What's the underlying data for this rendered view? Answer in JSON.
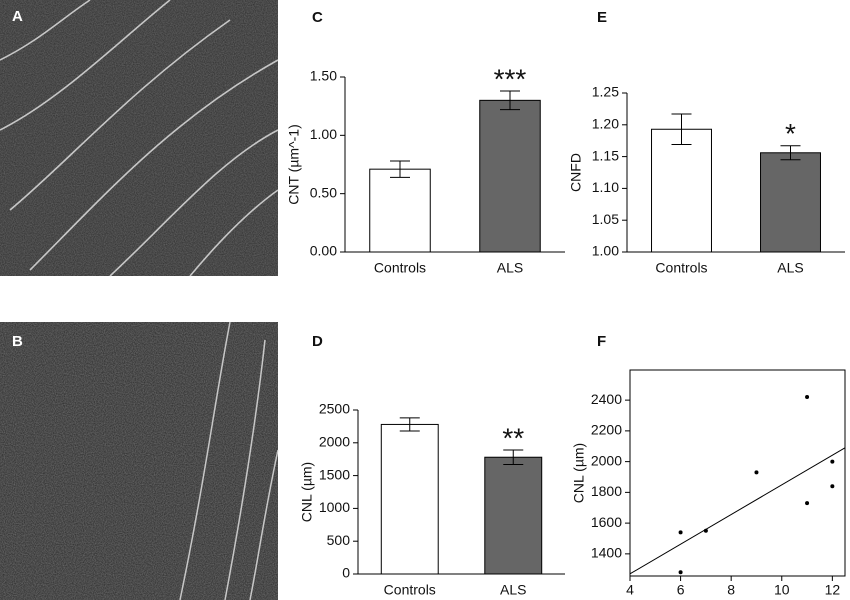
{
  "images": [
    {
      "label": "A"
    },
    {
      "label": "B"
    }
  ],
  "chart_data": [
    {
      "label": "C",
      "type": "bar",
      "ylabel": "CNT (µm^-1)",
      "categories": [
        "Controls",
        "ALS"
      ],
      "values": [
        0.71,
        1.3
      ],
      "errors": [
        0.07,
        0.08
      ],
      "colors": [
        "#ffffff",
        "#666666"
      ],
      "annotation": "***",
      "ylim": [
        0,
        1.5
      ],
      "yticks": [
        {
          "value": 0,
          "label": "0.00"
        },
        {
          "value": 0.5,
          "label": "0.50"
        },
        {
          "value": 1,
          "label": "1.00"
        },
        {
          "value": 1.5,
          "label": "1.50"
        }
      ]
    },
    {
      "label": "E",
      "type": "bar",
      "ylabel": "CNFD",
      "categories": [
        "Controls",
        "ALS"
      ],
      "values": [
        1.193,
        1.156
      ],
      "errors": [
        0.024,
        0.011
      ],
      "colors": [
        "#ffffff",
        "#666666"
      ],
      "annotation": "*",
      "ylim": [
        1.0,
        1.25
      ],
      "yticks": [
        {
          "value": 1.0,
          "label": "1.00"
        },
        {
          "value": 1.05,
          "label": "1.05"
        },
        {
          "value": 1.1,
          "label": "1.10"
        },
        {
          "value": 1.15,
          "label": "1.15"
        },
        {
          "value": 1.2,
          "label": "1.20"
        },
        {
          "value": 1.25,
          "label": "1.25"
        }
      ]
    },
    {
      "label": "D",
      "type": "bar",
      "ylabel": "CNL (µm)",
      "categories": [
        "Controls",
        "ALS"
      ],
      "values": [
        2280,
        1780
      ],
      "errors": [
        100,
        110
      ],
      "colors": [
        "#ffffff",
        "#666666"
      ],
      "annotation": "**",
      "ylim": [
        0,
        2500
      ],
      "yticks": [
        0,
        500,
        1000,
        1500,
        2000,
        2500
      ]
    },
    {
      "label": "F",
      "type": "scatter",
      "ylabel": "CNL (µm)",
      "x": [
        6,
        6,
        7,
        9,
        11,
        11,
        12,
        12
      ],
      "values": [
        1540,
        1280,
        1550,
        1930,
        2420,
        1730,
        2000,
        1840
      ],
      "trend_line": {
        "x": [
          4,
          12.5
        ],
        "y": [
          1270,
          2090
        ]
      },
      "color": "#000000",
      "xlim": [
        4,
        12.5
      ],
      "xticks": [
        4,
        6,
        8,
        10,
        12
      ],
      "ylim": [
        1256,
        2596
      ],
      "yticks": [
        1400,
        1600,
        1800,
        2000,
        2200,
        2400
      ]
    }
  ]
}
